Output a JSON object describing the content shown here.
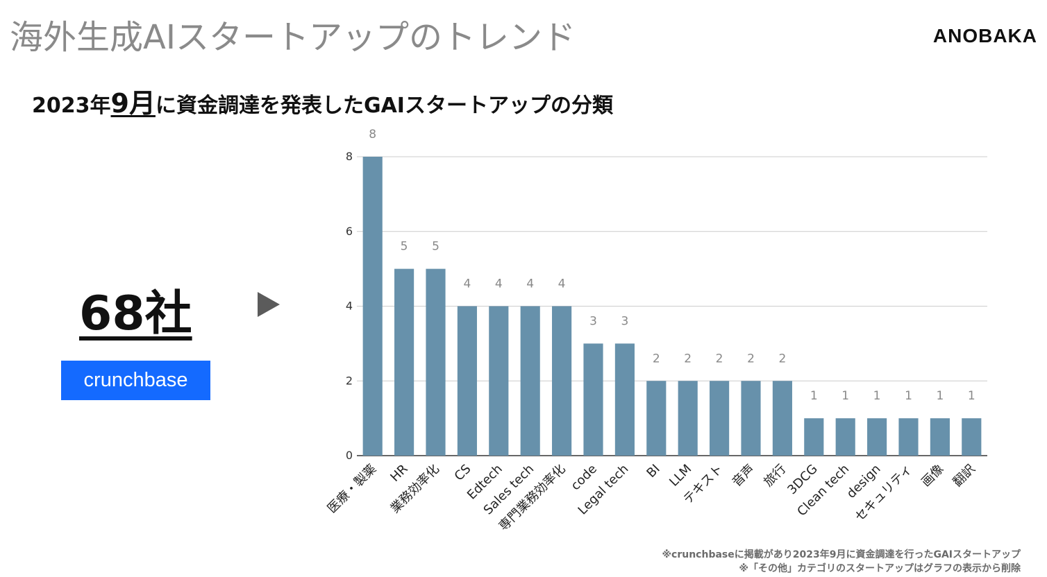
{
  "header": {
    "title": "海外生成AIスタートアップのトレンド",
    "brand": "ANOBAKA"
  },
  "subtitle": {
    "prefix": "2023年",
    "month": "9月",
    "suffix": "に資金調達を発表したGAIスタートアップの分類"
  },
  "summary": {
    "count": "68社",
    "source": "crunchbase"
  },
  "footnotes": [
    "※crunchbaseに掲載があり2023年9月に資金調達を行ったGAIスタートアップ",
    "※「その他」カテゴリのスタートアップはグラフの表示から削除"
  ],
  "colors": {
    "bar": "#6791ab",
    "grid": "#cccccc",
    "axis": "#333333",
    "label": "#888888",
    "badge": "#146aff"
  },
  "chart_data": {
    "type": "bar",
    "categories": [
      "医療・製薬",
      "HR",
      "業務効率化",
      "CS",
      "Edtech",
      "Sales tech",
      "専門業務効率化",
      "code",
      "Legal tech",
      "BI",
      "LLM",
      "テキスト",
      "音声",
      "旅行",
      "3DCG",
      "Clean tech",
      "design",
      "セキュリティ",
      "画像",
      "翻訳"
    ],
    "values": [
      8,
      5,
      5,
      4,
      4,
      4,
      4,
      3,
      3,
      2,
      2,
      2,
      2,
      2,
      1,
      1,
      1,
      1,
      1,
      1
    ],
    "ylim": [
      0,
      8
    ],
    "yticks": [
      0,
      2,
      4,
      6,
      8
    ],
    "grid": true,
    "data_labels": true
  }
}
